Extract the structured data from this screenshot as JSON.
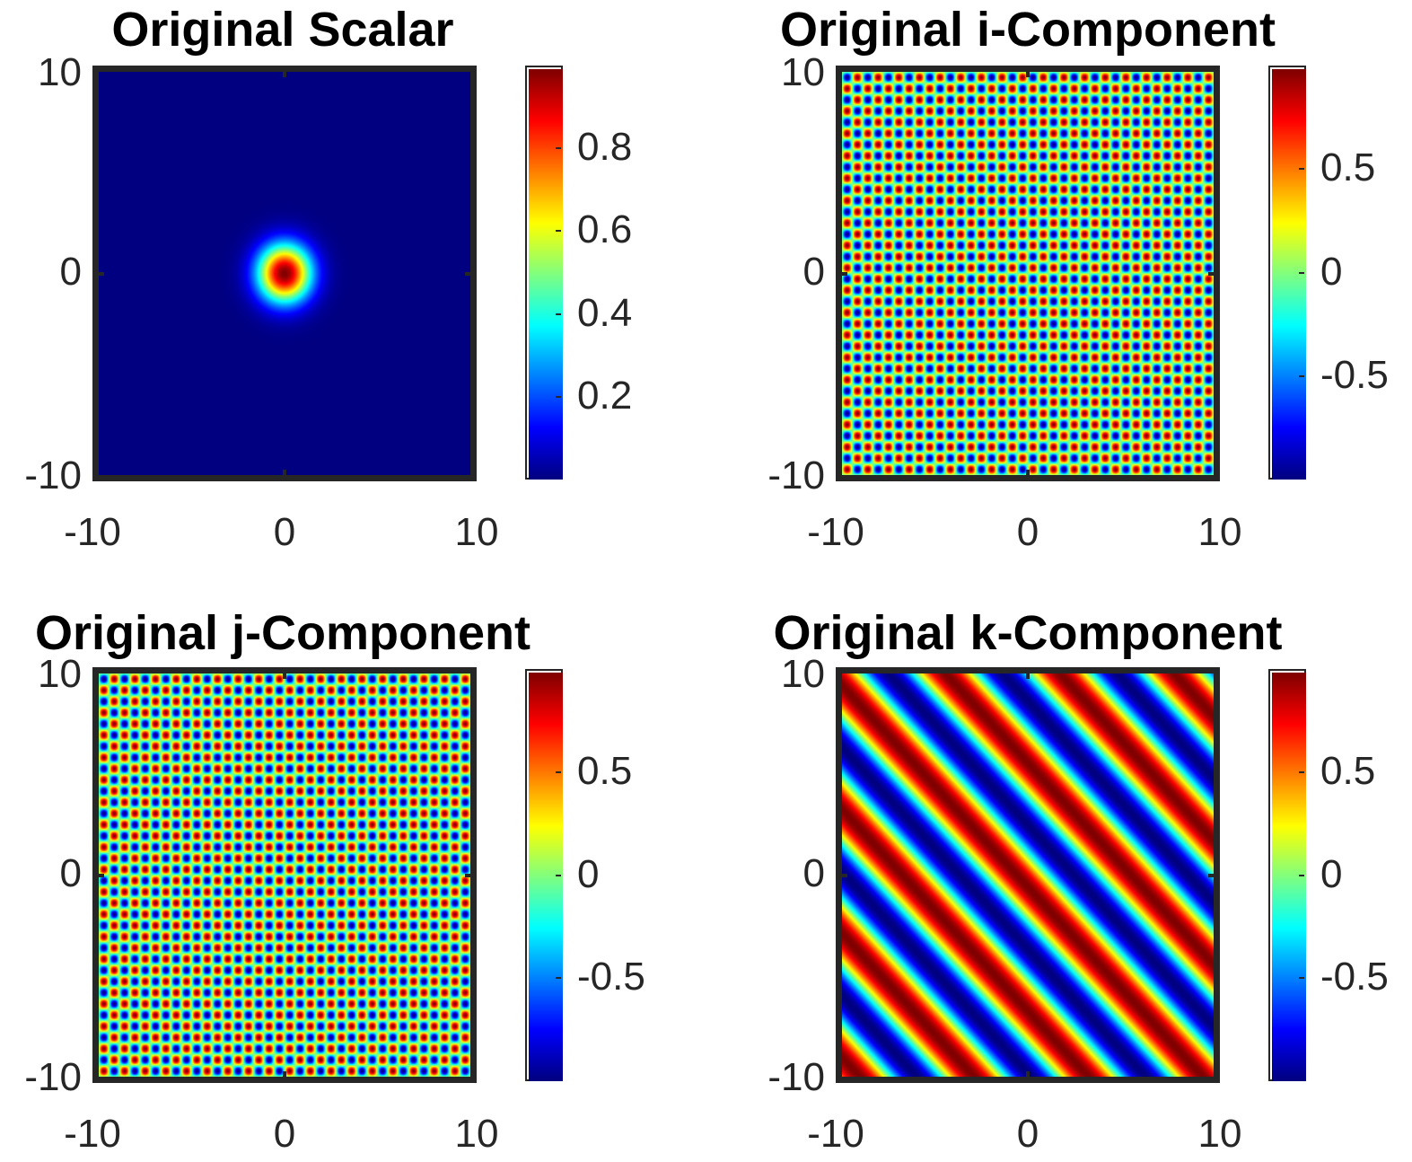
{
  "colormap": "jet",
  "chart_data": [
    {
      "type": "heatmap",
      "title": "Original Scalar",
      "function": "gaussian",
      "params": {
        "sigma": 1.0
      },
      "xlim": [
        -10,
        10
      ],
      "ylim": [
        -10,
        10
      ],
      "xticks": [
        "-10",
        "0",
        "10"
      ],
      "yticks": [
        "10",
        "0",
        "-10"
      ],
      "clim": [
        0,
        1
      ],
      "colorbar_ticks": [
        {
          "label": "0.8",
          "value": 0.8
        },
        {
          "label": "0.6",
          "value": 0.6
        },
        {
          "label": "0.4",
          "value": 0.4
        },
        {
          "label": "0.2",
          "value": 0.2
        }
      ]
    },
    {
      "type": "heatmap",
      "title": "Original i-Component",
      "function": "checker",
      "params": {
        "periods": 36
      },
      "xlim": [
        -10,
        10
      ],
      "ylim": [
        -10,
        10
      ],
      "xticks": [
        "-10",
        "0",
        "10"
      ],
      "yticks": [
        "10",
        "0",
        "-10"
      ],
      "clim": [
        -1,
        1
      ],
      "colorbar_ticks": [
        {
          "label": "0.5",
          "value": 0.5
        },
        {
          "label": "0",
          "value": 0
        },
        {
          "label": "-0.5",
          "value": -0.5
        }
      ]
    },
    {
      "type": "heatmap",
      "title": "Original j-Component",
      "function": "checker",
      "params": {
        "periods": 36
      },
      "xlim": [
        -10,
        10
      ],
      "ylim": [
        -10,
        10
      ],
      "xticks": [
        "-10",
        "0",
        "10"
      ],
      "yticks": [
        "10",
        "0",
        "-10"
      ],
      "clim": [
        -1,
        1
      ],
      "colorbar_ticks": [
        {
          "label": "0.5",
          "value": 0.5
        },
        {
          "label": "0",
          "value": 0
        },
        {
          "label": "-0.5",
          "value": -0.5
        }
      ]
    },
    {
      "type": "heatmap",
      "title": "Original k-Component",
      "function": "diagonal_wave",
      "params": {
        "stripes": 6.5
      },
      "xlim": [
        -10,
        10
      ],
      "ylim": [
        -10,
        10
      ],
      "xticks": [
        "-10",
        "0",
        "10"
      ],
      "yticks": [
        "10",
        "0",
        "-10"
      ],
      "clim": [
        -1,
        1
      ],
      "colorbar_ticks": [
        {
          "label": "0.5",
          "value": 0.5
        },
        {
          "label": "0",
          "value": 0
        },
        {
          "label": "-0.5",
          "value": -0.5
        }
      ]
    }
  ]
}
